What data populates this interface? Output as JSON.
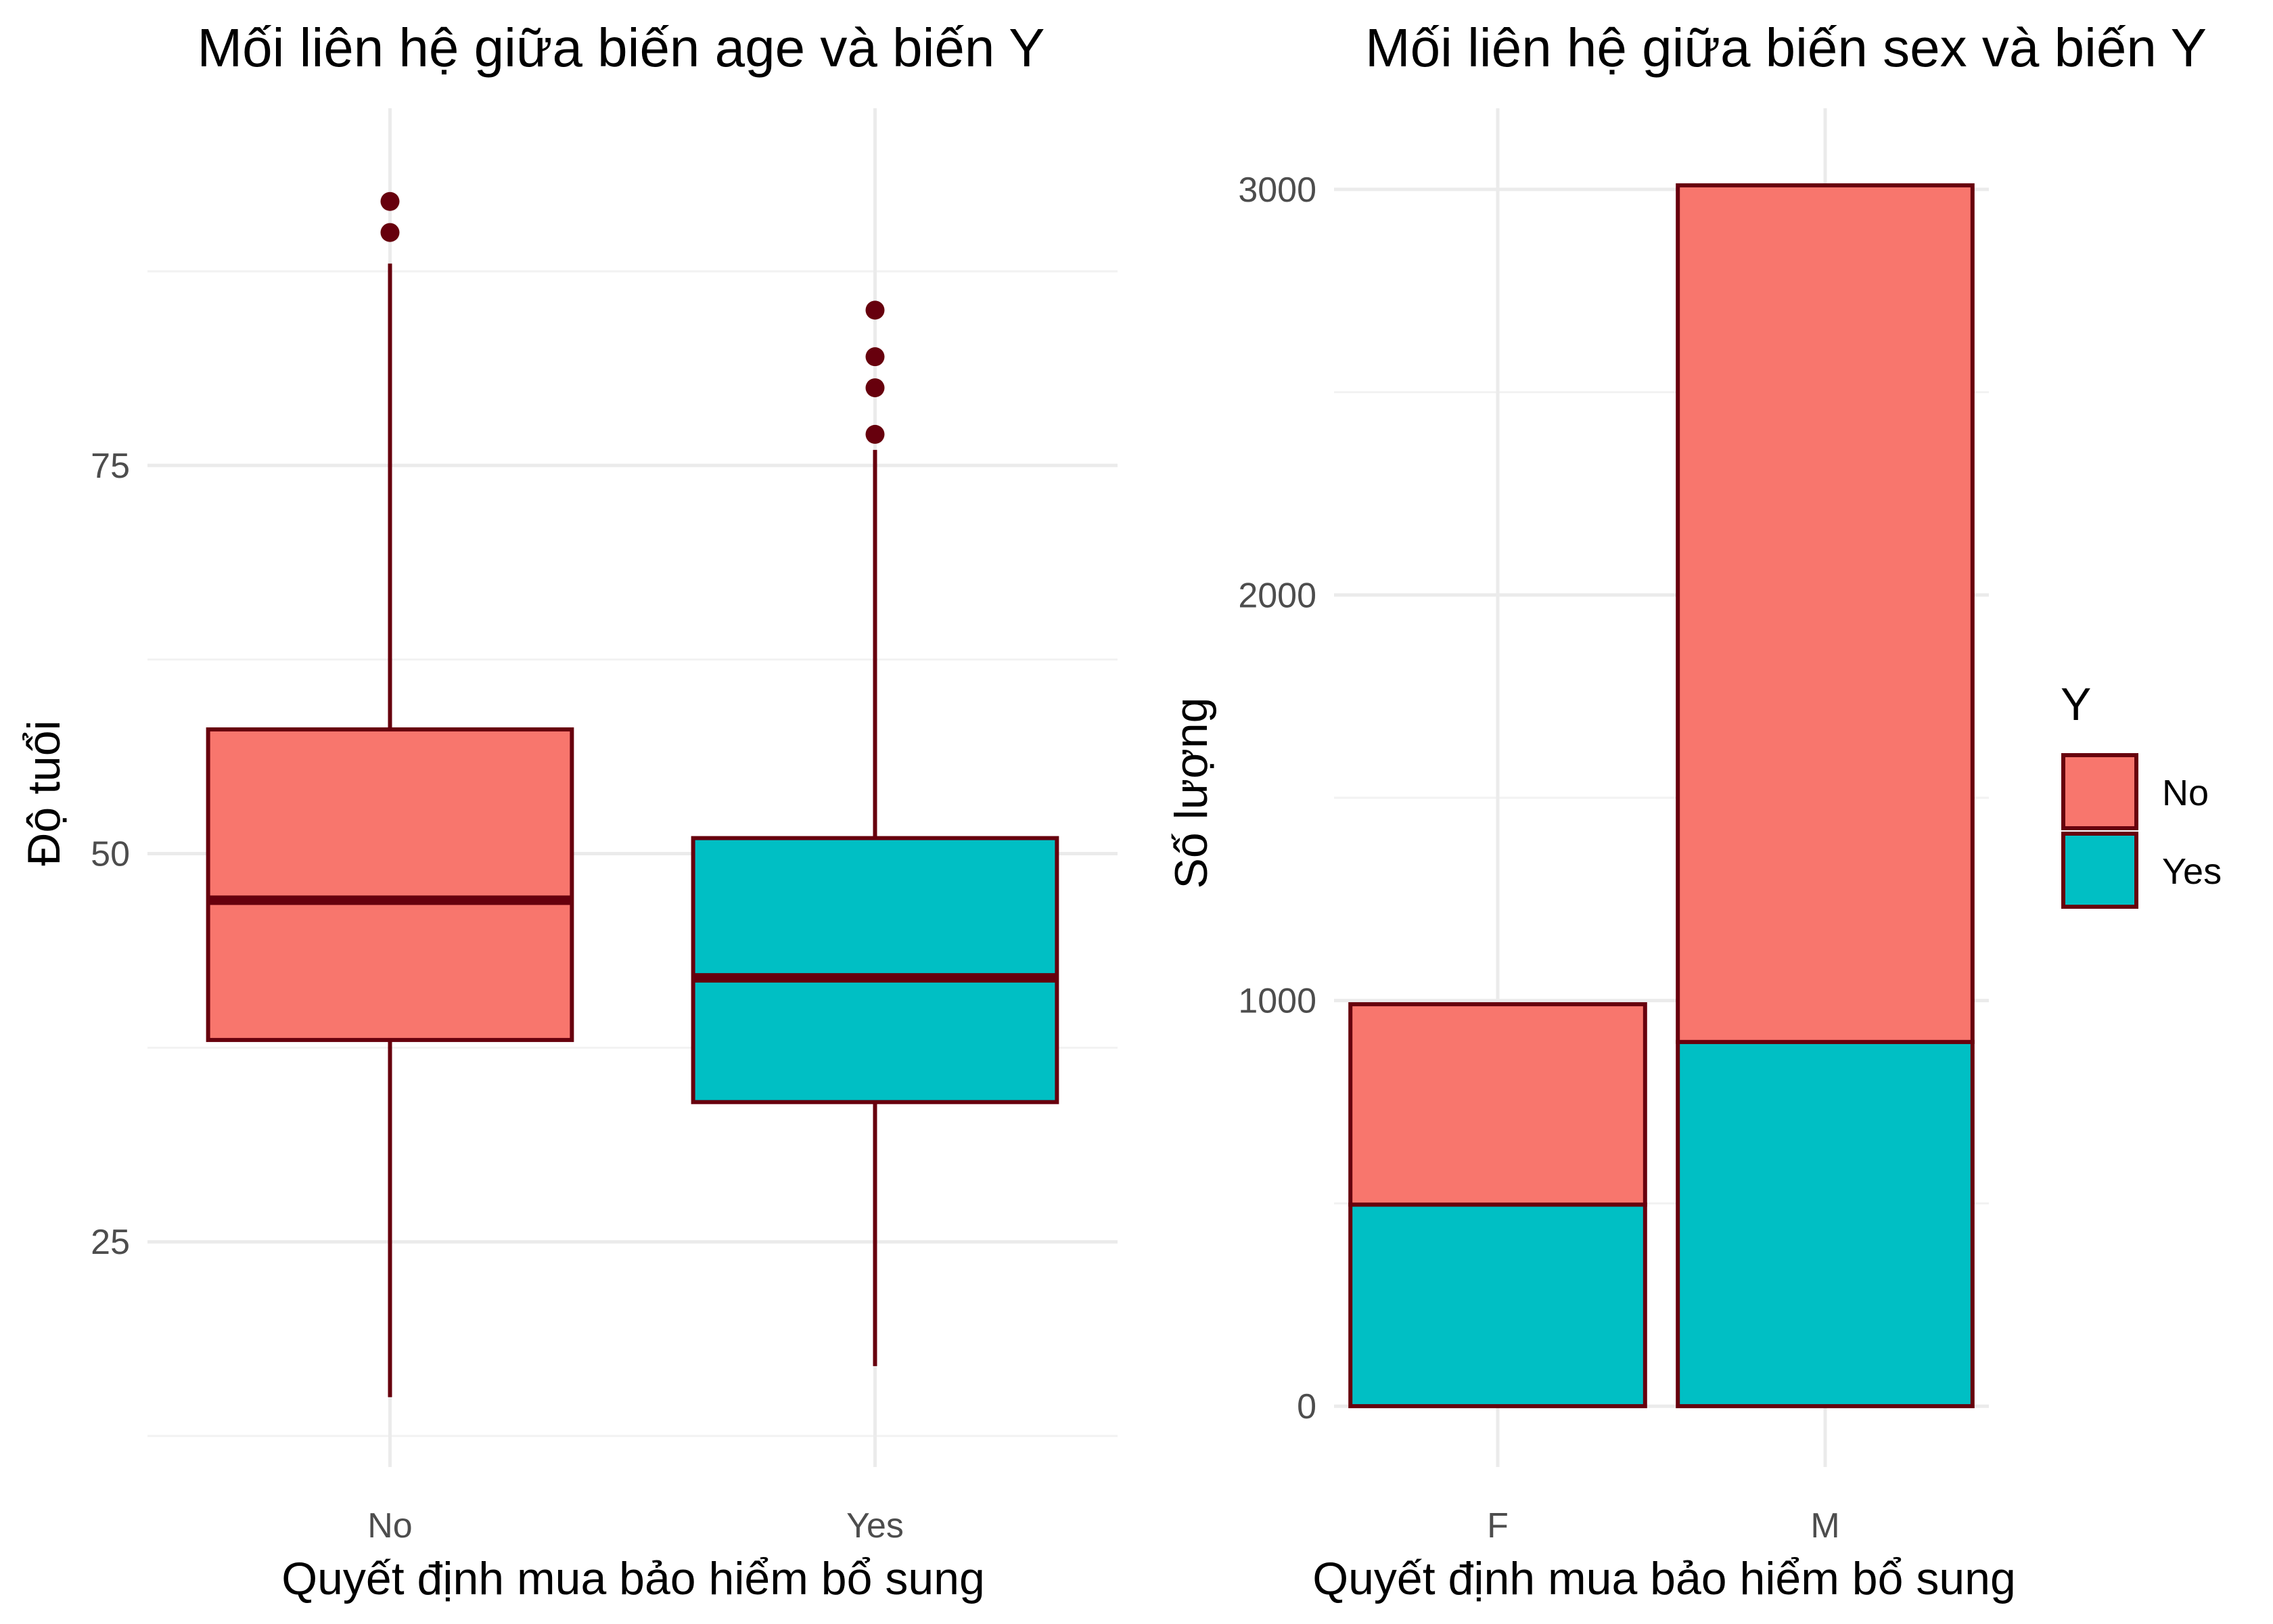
{
  "colors": {
    "no_fill": "#f8766d",
    "yes_fill": "#00bfc4",
    "outline": "#67000d",
    "grid": "#ebebeb",
    "tick_text": "#4d4d4d"
  },
  "chart_data": [
    {
      "type": "box",
      "title": "Mối liên hệ giữa biến age và biến Y",
      "xlabel": "Quyết định mua bảo hiểm bổ sung",
      "ylabel": "Độ tuổi",
      "categories": [
        "No",
        "Yes"
      ],
      "ylim": [
        10.5,
        98
      ],
      "yticks": [
        25,
        50,
        75
      ],
      "grid": true,
      "boxes": [
        {
          "category": "No",
          "fill": "#f8766d",
          "min": 15,
          "q1": 38,
          "median": 47,
          "q3": 58,
          "max": 88,
          "outliers": [
            90,
            92
          ]
        },
        {
          "category": "Yes",
          "fill": "#00bfc4",
          "min": 17,
          "q1": 34,
          "median": 42,
          "q3": 51,
          "max": 76,
          "outliers": [
            77,
            80,
            82,
            85
          ]
        }
      ]
    },
    {
      "type": "bar",
      "stacked": true,
      "title": "Mối liên hệ giữa biến sex và biến Y",
      "xlabel": "Quyết định mua bảo hiểm bổ sung",
      "ylabel": "Số lượng",
      "categories": [
        "F",
        "M"
      ],
      "ylim": [
        -150,
        3200
      ],
      "yticks": [
        0,
        1000,
        2000,
        3000
      ],
      "grid": true,
      "legend_title": "Y",
      "legend_position": "right",
      "series": [
        {
          "name": "No",
          "fill": "#f8766d",
          "values": [
            494,
            2112
          ]
        },
        {
          "name": "Yes",
          "fill": "#00bfc4",
          "values": [
            497,
            898
          ]
        }
      ]
    }
  ]
}
